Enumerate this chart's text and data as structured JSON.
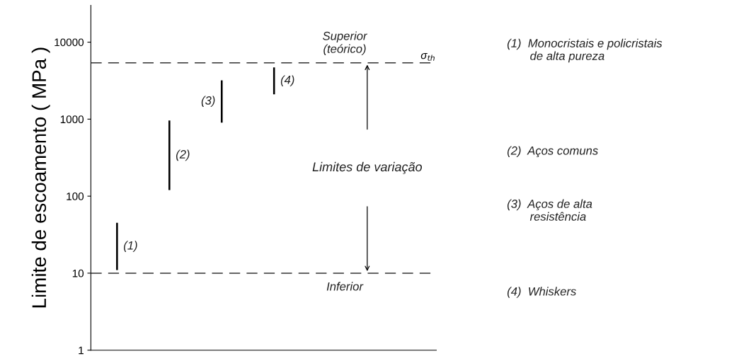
{
  "chart_data": {
    "type": "bar",
    "ylabel": "Limite de escoamento ( MPa )",
    "categories": [
      "(1)",
      "(2)",
      "(3)",
      "(4)"
    ],
    "base": [
      11,
      120,
      900,
      2100
    ],
    "values": [
      34,
      840,
      2300,
      2600
    ],
    "color": "#000000",
    "log": true,
    "ylim": [
      1,
      30000
    ],
    "yticks": [
      1,
      10,
      100,
      1000,
      10000
    ],
    "tick_labels": "y",
    "grid": false,
    "ref_lines": [
      {
        "axis": "y",
        "value": 5400,
        "label": "σ$_{th}$",
        "line_style": "dashed",
        "color": "#333333"
      },
      {
        "axis": "y",
        "value": 10,
        "line_style": "dashed",
        "color": "#333333"
      }
    ],
    "annotations": [
      {
        "text": "Superior\n(teórico)",
        "y": 5400
      },
      {
        "text": "Inferior",
        "y": 10
      },
      "Limites de variação",
      "(1)  Monocristais e policristais\n       de alta pureza",
      "(2)  Aços comuns",
      "(3)  Aços de alta\n       resistência",
      "(4)  Whiskers"
    ]
  }
}
